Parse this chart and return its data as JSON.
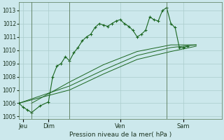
{
  "background_color": "#cce8ec",
  "grid_color": "#aacccc",
  "line_color": "#1a6620",
  "xlabel": "Pression niveau de la mer( hPa )",
  "ylim": [
    1004.8,
    1013.6
  ],
  "yticks": [
    1005,
    1006,
    1007,
    1008,
    1009,
    1010,
    1011,
    1012,
    1013
  ],
  "xlim": [
    0,
    24
  ],
  "day_positions": [
    0.5,
    3.5,
    12.0,
    19.5
  ],
  "day_labels": [
    "Jeu",
    "Dim",
    "Ven",
    "Sam"
  ],
  "vline_positions": [
    1.5,
    6.0,
    17.5
  ],
  "series1_x": [
    0.0,
    0.5,
    1.0,
    1.5,
    2.5,
    3.5,
    4.0,
    4.5,
    5.0,
    5.5,
    6.0,
    6.5,
    7.0,
    7.5,
    8.0,
    8.5,
    9.0,
    9.5,
    10.0,
    10.5,
    11.0,
    11.5,
    12.0,
    12.5,
    13.0,
    13.5,
    14.0,
    14.5,
    15.0,
    15.5,
    16.0,
    16.5,
    17.0,
    17.5,
    18.0,
    18.5,
    19.0,
    19.5,
    20.0,
    20.5,
    21.0
  ],
  "series1_y": [
    1006.0,
    1005.7,
    1005.5,
    1005.3,
    1005.8,
    1006.1,
    1008.0,
    1008.8,
    1009.0,
    1009.5,
    1009.2,
    1009.8,
    1010.2,
    1010.7,
    1011.0,
    1011.2,
    1011.7,
    1012.0,
    1011.9,
    1011.8,
    1012.0,
    1012.2,
    1012.3,
    1012.0,
    1011.8,
    1011.5,
    1011.0,
    1011.2,
    1011.5,
    1012.5,
    1012.3,
    1012.2,
    1013.0,
    1013.2,
    1012.0,
    1011.7,
    1010.2,
    1010.2,
    1010.3,
    null,
    null
  ],
  "diag1_x": [
    0.0,
    6.0,
    10.0,
    14.0,
    18.0,
    21.0
  ],
  "diag1_y": [
    1006.0,
    1007.0,
    1008.2,
    1009.3,
    1009.9,
    1010.3
  ],
  "diag2_x": [
    0.0,
    6.0,
    10.0,
    14.0,
    18.0,
    21.0
  ],
  "diag2_y": [
    1006.0,
    1007.3,
    1008.5,
    1009.6,
    1010.2,
    1010.4
  ],
  "diag3_x": [
    1.5,
    6.0,
    10.0,
    14.0,
    18.0,
    21.0
  ],
  "diag3_y": [
    1006.0,
    1007.6,
    1008.9,
    1009.9,
    1010.4,
    1010.4
  ]
}
